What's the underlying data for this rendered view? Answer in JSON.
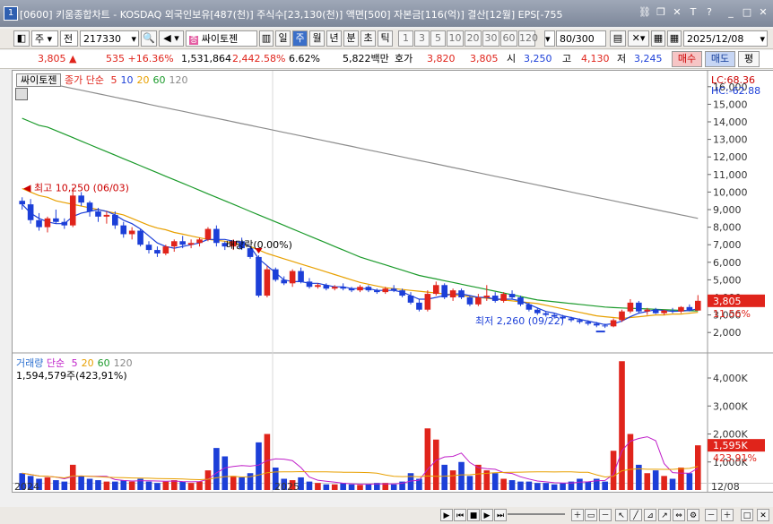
{
  "title": "[0600] 키움종합차트 - KOSDAQ 외국인보유[487(천)] 주식수[23,130(천)] 액면[500] 자본금[116(억)] 결산[12월] EPS[-755",
  "window_icon": "1",
  "toolbar": {
    "market_label": "주",
    "prev_label": "전",
    "code": "217330",
    "stock_name": "싸이토젠",
    "period_tabs": [
      "일",
      "주",
      "월",
      "년",
      "분",
      "초",
      "틱"
    ],
    "selected_period": "주",
    "intervals": [
      "1",
      "3",
      "5",
      "10",
      "20",
      "30",
      "60",
      "120"
    ],
    "count": "80",
    "count_total": "/300",
    "date": "2025/12/08"
  },
  "quote": {
    "price": "3,805",
    "change": "535",
    "change_pct": "+16.36%",
    "volume": "1,531,864",
    "volume_pct": "2,442.58%",
    "turnover": "6.62%",
    "trade_value": "5,822백만",
    "ask_label": "호가",
    "ask": "3,820",
    "bid": "3,805",
    "open_label": "시",
    "open": "3,250",
    "high_label": "고",
    "high": "4,130",
    "low_label": "저",
    "low": "3,245",
    "buy_label": "매수",
    "sell_label": "매도",
    "eval_label": "평"
  },
  "price_legend": {
    "name": "싸이토젠",
    "ma_label": "종가 단순",
    "periods": [
      "5",
      "10",
      "20",
      "60",
      "120"
    ],
    "colors": [
      "#e0241b",
      "#1c3fd8",
      "#e8a000",
      "#1a9a2a",
      "#888888"
    ]
  },
  "volume_legend": {
    "name": "거래량",
    "ma_label": "단순",
    "periods": [
      "5",
      "20",
      "60",
      "120"
    ],
    "current": "1,594,579주(423,91%)"
  },
  "annotations": {
    "high": "최고 10,250 (06/03)",
    "low": "최저 2,260 (09/22)",
    "dividend": "배당락(0.00%)",
    "lc": "LC:68.36",
    "hc": "HC:-62.88",
    "price_tag": "3,805",
    "price_pct": "11.56%",
    "vol_tag": "1,595K",
    "vol_pct": "423.91%"
  },
  "chart_data": {
    "type": "candlestick",
    "price_axis": [
      "16,000",
      "15,000",
      "14,000",
      "13,000",
      "12,000",
      "11,000",
      "10,000",
      "9,000",
      "8,000",
      "7,000",
      "6,000",
      "5,000",
      "4,000",
      "3,000",
      "2,000"
    ],
    "price_ylim": [
      1500,
      16500
    ],
    "volume_axis": [
      "4,000K",
      "3,000K",
      "2,000K",
      "1,000K"
    ],
    "volume_ylim": [
      0,
      4800
    ],
    "x_labels": [
      "2024",
      "2025",
      "12/08"
    ],
    "candles": [
      [
        9500,
        9700,
        9000,
        9300
      ],
      [
        9300,
        9600,
        8200,
        8400
      ],
      [
        8400,
        8800,
        7800,
        8000
      ],
      [
        8000,
        8600,
        7700,
        8500
      ],
      [
        8500,
        9000,
        8200,
        8300
      ],
      [
        8300,
        8500,
        7900,
        8100
      ],
      [
        8100,
        10250,
        8000,
        9800
      ],
      [
        9800,
        10000,
        9200,
        9400
      ],
      [
        9400,
        9500,
        8600,
        8900
      ],
      [
        8900,
        9100,
        8300,
        8600
      ],
      [
        8600,
        8900,
        8200,
        8700
      ],
      [
        8700,
        8900,
        7900,
        8100
      ],
      [
        8100,
        8300,
        7400,
        7600
      ],
      [
        7600,
        8000,
        7300,
        7800
      ],
      [
        7800,
        7900,
        6900,
        7000
      ],
      [
        7000,
        7200,
        6500,
        6700
      ],
      [
        6700,
        6900,
        6300,
        6500
      ],
      [
        6500,
        7000,
        6400,
        6900
      ],
      [
        6900,
        7300,
        6600,
        7200
      ],
      [
        7200,
        7500,
        6800,
        7000
      ],
      [
        7000,
        7300,
        6800,
        7100
      ],
      [
        7100,
        7400,
        6900,
        7300
      ],
      [
        7300,
        8000,
        7200,
        7900
      ],
      [
        7900,
        8100,
        6900,
        7100
      ],
      [
        7100,
        7200,
        6700,
        6900
      ],
      [
        6900,
        7300,
        6700,
        7200
      ],
      [
        7200,
        7400,
        6700,
        6800
      ],
      [
        6800,
        6900,
        6200,
        6300
      ],
      [
        6300,
        6400,
        4000,
        4100
      ],
      [
        4100,
        5800,
        4000,
        5600
      ],
      [
        5600,
        5700,
        4900,
        5000
      ],
      [
        5000,
        5200,
        4700,
        4800
      ],
      [
        4800,
        5600,
        4600,
        5500
      ],
      [
        5500,
        5700,
        4800,
        4900
      ],
      [
        4900,
        5100,
        4500,
        4600
      ],
      [
        4600,
        4800,
        4500,
        4700
      ],
      [
        4700,
        4800,
        4400,
        4500
      ],
      [
        4500,
        4700,
        4400,
        4600
      ],
      [
        4600,
        4800,
        4400,
        4500
      ],
      [
        4500,
        4600,
        4300,
        4400
      ],
      [
        4400,
        4700,
        4300,
        4600
      ],
      [
        4600,
        4700,
        4300,
        4400
      ],
      [
        4400,
        4500,
        4200,
        4300
      ],
      [
        4300,
        4600,
        4200,
        4500
      ],
      [
        4500,
        4700,
        4300,
        4400
      ],
      [
        4400,
        4500,
        4000,
        4100
      ],
      [
        4100,
        4300,
        3600,
        3700
      ],
      [
        3700,
        3900,
        3200,
        3300
      ],
      [
        3300,
        4400,
        3200,
        4200
      ],
      [
        4200,
        4900,
        4100,
        4700
      ],
      [
        4700,
        4800,
        3900,
        4000
      ],
      [
        4000,
        4500,
        3800,
        4400
      ],
      [
        4400,
        4500,
        3900,
        4000
      ],
      [
        4000,
        4100,
        3500,
        3600
      ],
      [
        3600,
        4200,
        3500,
        4000
      ],
      [
        4000,
        4700,
        3800,
        4100
      ],
      [
        4100,
        4300,
        3700,
        3800
      ],
      [
        3800,
        4300,
        3700,
        4200
      ],
      [
        4200,
        4400,
        3900,
        4000
      ],
      [
        4000,
        4100,
        3500,
        3600
      ],
      [
        3600,
        3700,
        3200,
        3300
      ],
      [
        3300,
        3400,
        3000,
        3100
      ],
      [
        3100,
        3200,
        2900,
        3000
      ],
      [
        3000,
        3100,
        2800,
        2900
      ],
      [
        2900,
        3000,
        2700,
        2800
      ],
      [
        2800,
        2900,
        2600,
        2700
      ],
      [
        2700,
        2800,
        2500,
        2600
      ],
      [
        2600,
        2700,
        2400,
        2500
      ],
      [
        2500,
        2600,
        2300,
        2400
      ],
      [
        2400,
        2500,
        2260,
        2350
      ],
      [
        2350,
        2800,
        2300,
        2700
      ],
      [
        2700,
        3300,
        2600,
        3200
      ],
      [
        3200,
        3900,
        3100,
        3700
      ],
      [
        3700,
        3800,
        3100,
        3200
      ],
      [
        3200,
        3400,
        3000,
        3300
      ],
      [
        3300,
        3400,
        3050,
        3100
      ],
      [
        3100,
        3300,
        3000,
        3250
      ],
      [
        3250,
        3400,
        3100,
        3200
      ],
      [
        3200,
        3500,
        3100,
        3450
      ],
      [
        3450,
        3600,
        3200,
        3270
      ],
      [
        3250,
        4130,
        3245,
        3805
      ]
    ],
    "volumes": [
      600,
      500,
      400,
      450,
      350,
      300,
      900,
      500,
      400,
      350,
      300,
      300,
      350,
      300,
      400,
      300,
      250,
      300,
      350,
      300,
      250,
      300,
      700,
      1500,
      1200,
      500,
      450,
      600,
      1700,
      2000,
      800,
      400,
      350,
      450,
      300,
      250,
      200,
      200,
      250,
      200,
      180,
      200,
      250,
      250,
      200,
      300,
      600,
      400,
      2200,
      1800,
      900,
      700,
      1000,
      500,
      900,
      700,
      600,
      400,
      350,
      300,
      300,
      250,
      250,
      200,
      250,
      300,
      400,
      300,
      400,
      300,
      1400,
      4600,
      2000,
      900,
      600,
      700,
      500,
      400,
      800,
      600,
      1595
    ],
    "ma5": [
      9300,
      8800,
      8500,
      8300,
      8200,
      8200,
      8600,
      8800,
      8900,
      9000,
      8900,
      8700,
      8400,
      8200,
      7900,
      7500,
      7100,
      6900,
      6800,
      6900,
      7000,
      7100,
      7300,
      7300,
      7300,
      7200,
      7100,
      6900,
      6200,
      5800,
      5400,
      5000,
      4900,
      4900,
      4800,
      4800,
      4700,
      4600,
      4600,
      4500,
      4500,
      4500,
      4400,
      4400,
      4400,
      4300,
      4100,
      3900,
      3900,
      4000,
      4100,
      4200,
      4200,
      4100,
      4000,
      4000,
      3900,
      3900,
      3900,
      3800,
      3600,
      3400,
      3200,
      3100,
      2950,
      2850,
      2750,
      2650,
      2550,
      2450,
      2500,
      2650,
      2900,
      3100,
      3200,
      3300,
      3250,
      3200,
      3220,
      3250,
      3350
    ],
    "ma20": [
      10200,
      10000,
      9800,
      9700,
      9500,
      9400,
      9300,
      9200,
      9100,
      9000,
      8900,
      8800,
      8700,
      8500,
      8300,
      8100,
      7950,
      7850,
      7700,
      7600,
      7500,
      7400,
      7300,
      7250,
      7200,
      7100,
      7000,
      6900,
      6700,
      6500,
      6350,
      6200,
      6050,
      5900,
      5750,
      5600,
      5450,
      5300,
      5150,
      5000,
      4850,
      4750,
      4650,
      4550,
      4500,
      4450,
      4400,
      4350,
      4300,
      4250,
      4200,
      4150,
      4100,
      4050,
      4000,
      3950,
      3900,
      3850,
      3800,
      3750,
      3700,
      3650,
      3550,
      3450,
      3350,
      3250,
      3150,
      3050,
      2950,
      2900,
      2850,
      2800,
      2850,
      2900,
      2950,
      3000,
      3000,
      3050,
      3050,
      3100,
      3150
    ],
    "ma60": [
      14200,
      14000,
      13800,
      13700,
      13500,
      13300,
      13100,
      12900,
      12700,
      12500,
      12300,
      12100,
      11900,
      11700,
      11500,
      11300,
      11100,
      10900,
      10700,
      10500,
      10300,
      10100,
      9900,
      9700,
      9500,
      9300,
      9100,
      8900,
      8700,
      8500,
      8300,
      8100,
      7900,
      7700,
      7500,
      7300,
      7100,
      6900,
      6700,
      6500,
      6300,
      6150,
      6000,
      5850,
      5700,
      5550,
      5400,
      5250,
      5150,
      5050,
      4950,
      4850,
      4750,
      4650,
      4550,
      4450,
      4350,
      4250,
      4150,
      4050,
      3950,
      3850,
      3800,
      3750,
      3700,
      3650,
      3600,
      3550,
      3500,
      3450,
      3420,
      3400,
      3380,
      3360,
      3340,
      3320,
      3300,
      3280,
      3260,
      3240,
      3225
    ],
    "ma120": [
      16500,
      16400,
      16300,
      16200,
      16100,
      16000,
      15900,
      15800,
      15700,
      15600,
      15500,
      15400,
      15300,
      15200,
      15100,
      15000,
      14900,
      14800,
      14700,
      14600,
      14500,
      14400,
      14300,
      14200,
      14100,
      14000,
      13900,
      13800,
      13700,
      13600,
      13500,
      13400,
      13300,
      13200,
      13100,
      13000,
      12900,
      12800,
      12700,
      12600,
      12500,
      12400,
      12300,
      12200,
      12100,
      12000,
      11900,
      11800,
      11700,
      11600,
      11500,
      11400,
      11300,
      11200,
      11100,
      11000,
      10900,
      10800,
      10700,
      10600,
      10500,
      10400,
      10300,
      10200,
      10100,
      10000,
      9900,
      9800,
      9700,
      9600,
      9500,
      9400,
      9300,
      9200,
      9100,
      9000,
      8900,
      8800,
      8700,
      8600,
      8500
    ]
  },
  "colors": {
    "up": "#e0241b",
    "down": "#1c3fd8",
    "bg": "#ffffff"
  }
}
